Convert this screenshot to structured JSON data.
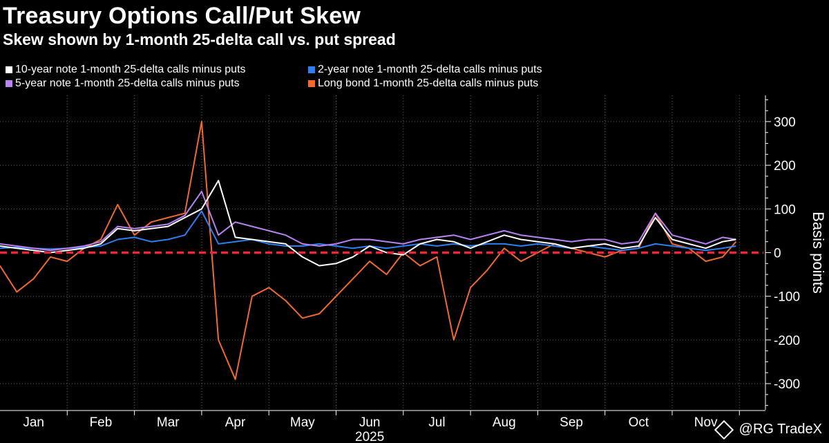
{
  "chart_data": {
    "type": "line",
    "title": "Treasury Options Call/Put Skew",
    "subtitle": "Skew shown by 1-month 25-delta call vs. put spread",
    "ylabel": "Basis points",
    "xlabel": "2025",
    "ylim": [
      -360,
      360
    ],
    "yticks": [
      300,
      200,
      100,
      0,
      -100,
      -200,
      -300
    ],
    "ytick_labels": [
      "300",
      "200",
      "100",
      "0",
      "-100",
      "-200",
      "-300"
    ],
    "months": [
      "Jan",
      "Feb",
      "Mar",
      "Apr",
      "May",
      "Jun",
      "Jul",
      "Aug",
      "Sep",
      "Oct",
      "Nov"
    ],
    "x_year": "2025",
    "zero_line_color": "#e8283c",
    "x": [
      0,
      0.25,
      0.5,
      0.75,
      1,
      1.25,
      1.5,
      1.75,
      2,
      2.25,
      2.5,
      2.75,
      3,
      3.25,
      3.5,
      3.75,
      4,
      4.25,
      4.5,
      4.75,
      5,
      5.25,
      5.5,
      5.75,
      6,
      6.25,
      6.5,
      6.75,
      7,
      7.25,
      7.5,
      7.75,
      8,
      8.25,
      8.5,
      8.75,
      9,
      9.25,
      9.5,
      9.75,
      10,
      10.25,
      10.5,
      10.75,
      10.95
    ],
    "series": [
      {
        "name": "10-year note 1-month 25-delta calls minus puts",
        "color": "#ffffff",
        "values": [
          15,
          10,
          5,
          0,
          5,
          10,
          20,
          55,
          50,
          55,
          60,
          80,
          100,
          165,
          35,
          30,
          25,
          20,
          -10,
          -30,
          -25,
          -10,
          15,
          0,
          -5,
          20,
          30,
          25,
          10,
          25,
          40,
          30,
          25,
          20,
          10,
          15,
          20,
          10,
          15,
          80,
          30,
          20,
          10,
          25,
          30
        ]
      },
      {
        "name": "2-year note 1-month 25-delta calls minus puts",
        "color": "#2f7ff0",
        "values": [
          10,
          12,
          10,
          8,
          10,
          12,
          15,
          30,
          35,
          25,
          30,
          40,
          95,
          20,
          25,
          30,
          20,
          15,
          15,
          20,
          15,
          10,
          15,
          10,
          15,
          20,
          15,
          20,
          15,
          20,
          20,
          15,
          20,
          15,
          10,
          15,
          10,
          5,
          10,
          20,
          15,
          10,
          5,
          10,
          15
        ]
      },
      {
        "name": "5-year note 1-month 25-delta calls minus puts",
        "color": "#b783f5",
        "values": [
          20,
          15,
          10,
          5,
          10,
          15,
          25,
          60,
          55,
          60,
          65,
          85,
          140,
          40,
          70,
          60,
          50,
          40,
          20,
          15,
          20,
          30,
          30,
          25,
          20,
          30,
          35,
          40,
          30,
          40,
          50,
          40,
          35,
          30,
          25,
          30,
          30,
          20,
          25,
          90,
          40,
          30,
          20,
          35,
          30
        ]
      },
      {
        "name": "Long bond 1-month 25-delta calls minus puts",
        "color": "#f26a2e",
        "values": [
          -30,
          -90,
          -60,
          -10,
          -20,
          10,
          30,
          110,
          40,
          70,
          80,
          90,
          300,
          -200,
          -290,
          -100,
          -80,
          -110,
          -150,
          -140,
          -100,
          -60,
          -20,
          -50,
          0,
          -30,
          -10,
          -200,
          -80,
          -40,
          10,
          -20,
          0,
          20,
          10,
          0,
          -10,
          5,
          10,
          90,
          20,
          10,
          -20,
          -10,
          25
        ]
      }
    ]
  },
  "watermark": {
    "text": "@RG TradeX"
  }
}
